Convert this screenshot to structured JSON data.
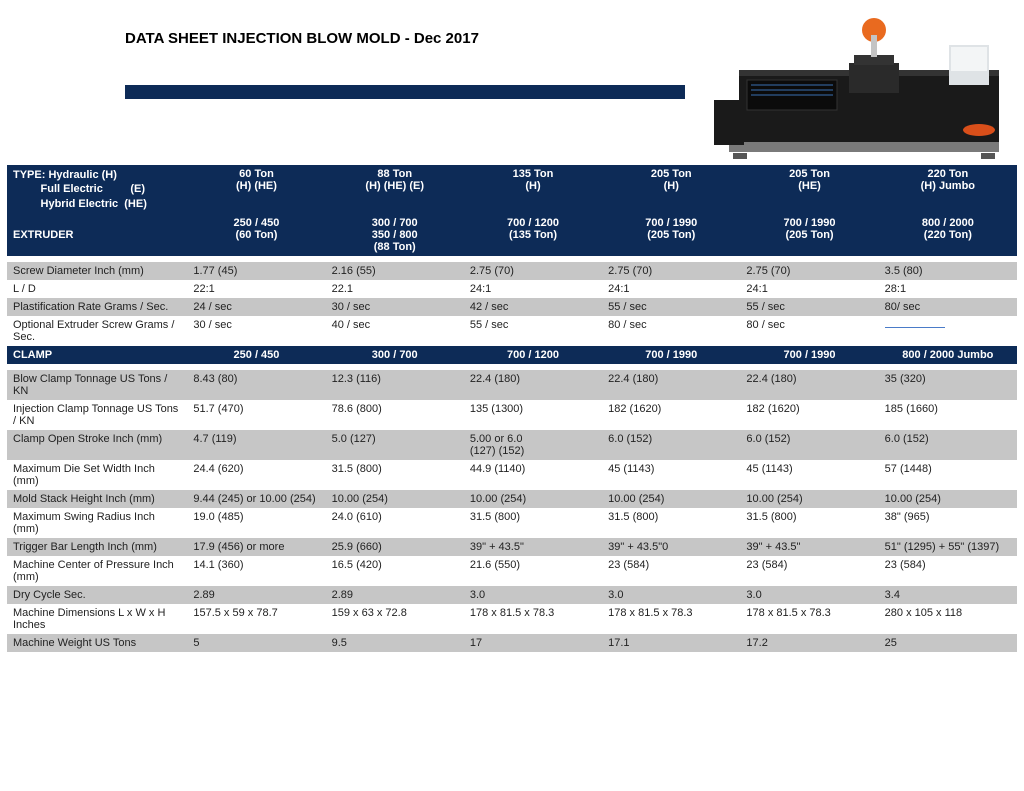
{
  "title": "DATA SHEET INJECTION BLOW MOLD - Dec 2017",
  "colors": {
    "header_blue": "#0d2b57",
    "row_grey": "#c6c6c6",
    "row_white": "#ffffff",
    "text": "#222222"
  },
  "fonts": {
    "body_size_pt": 11,
    "title_size_pt": 15,
    "title_weight": "bold"
  },
  "machine_image": {
    "description": "injection blow mold machine",
    "body_color": "#1a1a1a",
    "base_color": "#7a7a7a",
    "accent_color": "#d94f1a",
    "screen_color": "#dfe3e6",
    "robot_color": "#e96a1f"
  },
  "columns": [
    "60 Ton",
    "88 Ton",
    "135 Ton",
    "205 Ton",
    "205 Ton",
    "220 Ton"
  ],
  "column_variants": [
    "(H) (HE)",
    "(H) (HE) (E)",
    "(H)",
    "(H)",
    "(HE)",
    "(H)  Jumbo"
  ],
  "type_header": {
    "line1": "TYPE: Hydraulic           (H)",
    "line2": "         Full Electric         (E)",
    "line3": "         Hybrid Electric  (HE)"
  },
  "extruder_header": "EXTRUDER",
  "extruder_cells": [
    "250 / 450\n(60 Ton)",
    "300 / 700\n350 / 800\n(88 Ton)",
    "700 / 1200\n(135 Ton)",
    "700 / 1990\n(205 Ton)",
    "700 / 1990\n(205 Ton)",
    "800 / 2000\n(220 Ton)"
  ],
  "clamp_header": "CLAMP",
  "clamp_cells": [
    "250 / 450",
    "300 / 700",
    "700 / 1200",
    "700 / 1990",
    "700 / 1990",
    "800 / 2000 Jumbo"
  ],
  "section1_rows": [
    {
      "shade": "grey",
      "label": "Screw Diameter   Inch (mm)",
      "cells": [
        "1.77 (45)",
        "2.16 (55)",
        "2.75 (70)",
        "2.75 (70)",
        "2.75 (70)",
        "3.5 (80)"
      ]
    },
    {
      "shade": "white",
      "label": "L / D",
      "cells": [
        "22:1",
        "22.1",
        "24:1",
        "24:1",
        "24:1",
        "28:1"
      ]
    },
    {
      "shade": "grey",
      "label": "Plastification Rate   Grams / Sec.",
      "cells": [
        "24 / sec",
        "30 / sec",
        "42 / sec",
        "55 / sec",
        "55 / sec",
        "80/ sec"
      ]
    },
    {
      "shade": "white",
      "label": " Optional Extruder Screw   Grams / Sec.",
      "cells": [
        "30 / sec",
        "40 / sec",
        "55 / sec",
        "80 / sec",
        "80 / sec",
        "__UL__"
      ]
    }
  ],
  "section2_rows": [
    {
      "shade": "grey",
      "label": "Blow Clamp Tonnage   US Tons / KN",
      "cells": [
        "8.43 (80)",
        "12.3 (116)",
        "22.4 (180)",
        "22.4 (180)",
        "22.4 (180)",
        "35 (320)"
      ]
    },
    {
      "shade": "white",
      "label": "Injection Clamp Tonnage   US Tons / KN",
      "cells": [
        "51.7 (470)",
        "78.6 (800)",
        "135 (1300)",
        "182 (1620)",
        "182 (1620)",
        "185 (1660)"
      ]
    },
    {
      "shade": "grey",
      "label": "Clamp Open Stroke   Inch (mm)",
      "cells": [
        "4.7 (119)",
        "5.0 (127)",
        "5.00 or 6.0\n (127) (152)",
        "6.0 (152)",
        "6.0 (152)",
        "6.0 (152)"
      ]
    },
    {
      "shade": "white",
      "label": " Maximum Die Set Width   Inch (mm)",
      "cells": [
        "24.4 (620)",
        "31.5 (800)",
        "44.9 (1140)",
        "45 (1143)",
        "45 (1143)",
        "57 (1448)"
      ]
    },
    {
      "shade": "grey",
      "label": "Mold Stack Height   Inch (mm)",
      "cells": [
        "9.44 (245)  or 10.00 (254)",
        "10.00 (254)",
        "10.00 (254)",
        "10.00 (254)",
        "10.00 (254)",
        "10.00 (254)"
      ]
    },
    {
      "shade": "white",
      "label": " Maximum Swing Radius   Inch (mm)",
      "cells": [
        "19.0 (485)",
        "24.0 (610)",
        "31.5 (800)",
        "31.5 (800)",
        "31.5 (800)",
        "38\" (965)"
      ]
    },
    {
      "shade": "grey",
      "label": "Trigger Bar Length   Inch (mm)",
      "cells": [
        "17.9 (456) or more",
        "25.9 (660)",
        "39\" +  43.5\"",
        "39\" +  43.5\"0",
        "39\" +  43.5\"",
        "51\" (1295) + 55\"  (1397)"
      ]
    },
    {
      "shade": "white",
      "label": " Machine Center of Pressure   Inch (mm)",
      "cells": [
        "14.1 (360)",
        "16.5 (420)",
        "21.6 (550)",
        "23 (584)",
        "23 (584)",
        "23 (584)"
      ]
    },
    {
      "shade": "grey",
      "label": "Dry Cycle   Sec.",
      "cells": [
        "2.89",
        "2.89",
        "3.0",
        "3.0",
        "3.0",
        "3.4"
      ]
    },
    {
      "shade": "white",
      "label": " Machine Dimensions   L x W x H Inches",
      "cells": [
        "157.5 x 59 x 78.7",
        "159 x 63 x 72.8",
        "178 x 81.5 x 78.3",
        "178 x 81.5 x 78.3",
        "178 x 81.5 x 78.3",
        "280 x 105 x 118"
      ]
    },
    {
      "shade": "grey",
      "label": "Machine Weight   US Tons",
      "cells": [
        "5",
        "9.5",
        "17",
        "17.1",
        "17.2",
        "25"
      ]
    }
  ]
}
